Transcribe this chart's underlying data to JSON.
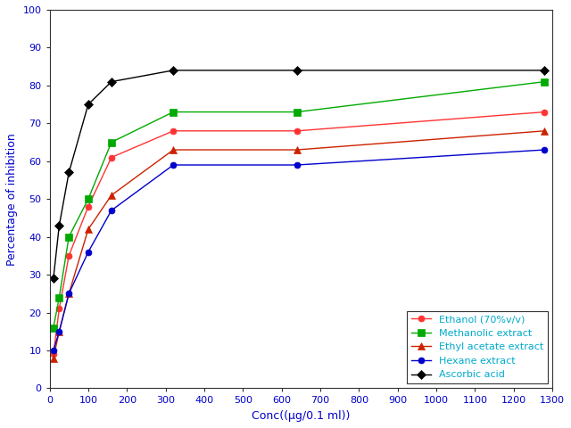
{
  "x_values": [
    10,
    25,
    50,
    100,
    160,
    320,
    640,
    1280
  ],
  "series": [
    {
      "label": "Ethanol (70%v/v)",
      "color": "#ff3333",
      "marker": "o",
      "y": [
        9,
        21,
        35,
        48,
        61,
        68,
        68,
        73
      ]
    },
    {
      "label": "Methanolic extract",
      "color": "#00aa00",
      "marker": "s",
      "y": [
        16,
        24,
        40,
        50,
        65,
        73,
        73,
        81
      ]
    },
    {
      "label": "Ethyl acetate extract",
      "color": "#cc2200",
      "marker": "^",
      "y": [
        8,
        15,
        25,
        42,
        51,
        63,
        63,
        68
      ]
    },
    {
      "label": "Hexane extract",
      "color": "#0000cc",
      "marker": "o",
      "y": [
        10,
        15,
        25,
        36,
        47,
        59,
        59,
        63
      ]
    },
    {
      "label": "Ascorbic acid",
      "color": "#000000",
      "marker": "D",
      "y": [
        29,
        43,
        57,
        75,
        81,
        84,
        84,
        84
      ]
    }
  ],
  "xlabel": "Conc(µg/0.1 ml)",
  "xlabel_display": "Conc((μg/0.1 ml))",
  "ylabel": "Percentage of inhibition",
  "xlim": [
    0,
    1300
  ],
  "ylim": [
    0,
    100
  ],
  "xticks": [
    0,
    100,
    200,
    300,
    400,
    500,
    600,
    700,
    800,
    900,
    1000,
    1100,
    1200,
    1300
  ],
  "yticks": [
    0,
    10,
    20,
    30,
    40,
    50,
    60,
    70,
    80,
    90,
    100
  ],
  "legend_loc": "lower right",
  "legend_text_color": "#00aacc",
  "background_color": "#ffffff",
  "axis_label_color": "#0000cc",
  "tick_label_color": "#0000cc"
}
